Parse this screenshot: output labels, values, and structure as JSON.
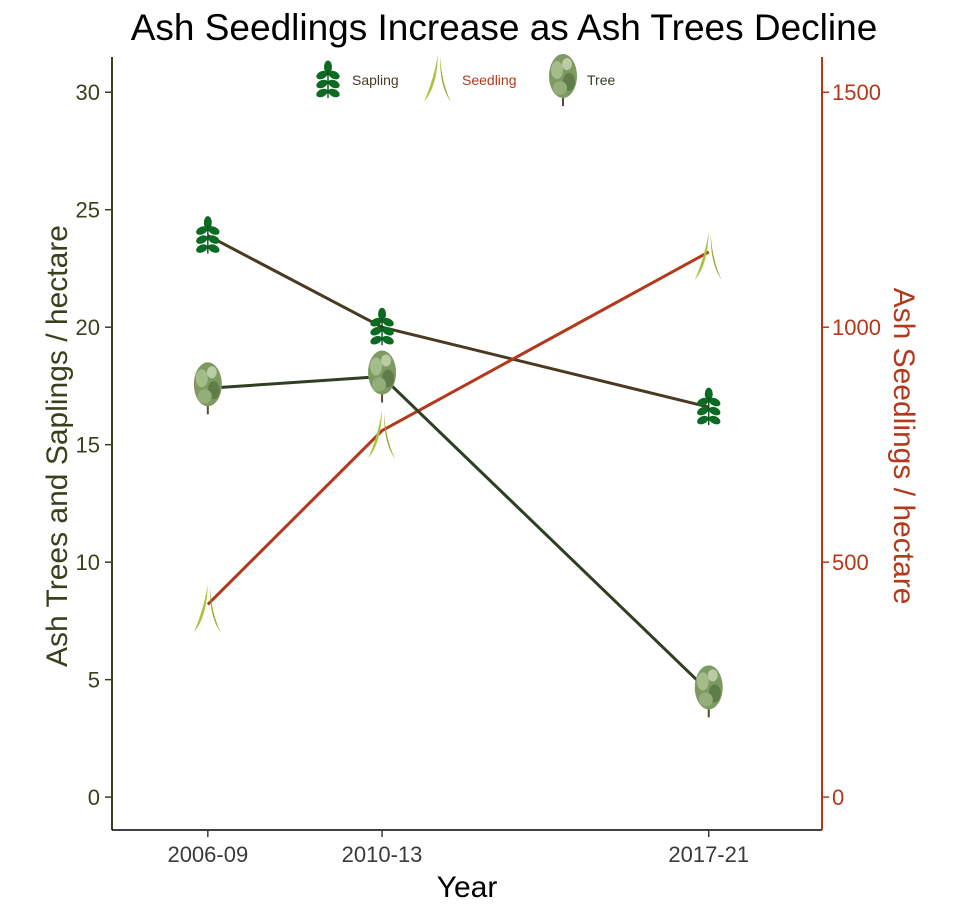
{
  "chart_data": {
    "type": "line",
    "title": "Ash Seedlings Increase as Ash Trees Decline",
    "xlabel": "Year",
    "ylabel_left": "Ash Trees and Saplings / hectare",
    "ylabel_right": "Ash Seedlings / hectare",
    "categories": [
      "2006-09",
      "2010-13",
      "2017-21"
    ],
    "x_values": [
      2007.5,
      2011.5,
      2019.0
    ],
    "y_left_range": [
      -1.4,
      31.5
    ],
    "y_left_ticks": [
      "0",
      "5",
      "10",
      "15",
      "20",
      "25",
      "30"
    ],
    "y_right_range": [
      -70,
      1575
    ],
    "y_right_ticks": [
      "0",
      "500",
      "1000",
      "1500"
    ],
    "grid": false,
    "legend_position": "top-center",
    "series": [
      {
        "name": "Sapling",
        "axis": "left",
        "color": "#4a3a22",
        "icon": "ash-leaf-icon",
        "values": [
          23.9,
          20.0,
          16.6
        ]
      },
      {
        "name": "Seedling",
        "axis": "right",
        "color": "#b2391b",
        "icon": "grass-blade-icon",
        "values": [
          410,
          780,
          1160
        ]
      },
      {
        "name": "Tree",
        "axis": "left",
        "color": "#2f3f22",
        "icon": "tree-icon",
        "values": [
          17.4,
          17.9,
          4.5
        ]
      }
    ]
  },
  "colors": {
    "left_axis": "#37421d",
    "right_axis": "#b2391b",
    "leaf": "#0c6b22",
    "grass": "#a7c441",
    "tree_foliage": "#7d9a63"
  }
}
